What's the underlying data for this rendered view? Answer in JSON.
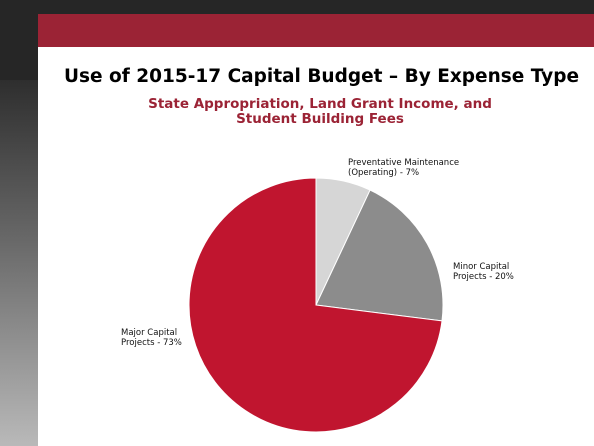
{
  "slide": {
    "title": "Use of 2015-17 Capital Budget – By Expense Type"
  },
  "chart_data": {
    "type": "pie",
    "title": "State Appropriation, Land Grant Income, and Student Building Fees",
    "slices": [
      {
        "label": "Preventative Maintenance\n(Operating) - 7%",
        "value": 7,
        "color": "#d6d6d6"
      },
      {
        "label": "Minor Capital\nProjects - 20%",
        "value": 20,
        "color": "#8c8c8c"
      },
      {
        "label": "Major Capital\nProjects - 73%",
        "value": 73,
        "color": "#c0152f"
      }
    ]
  },
  "colors": {
    "accent": "#9b2335",
    "sidebar": "#262626"
  }
}
